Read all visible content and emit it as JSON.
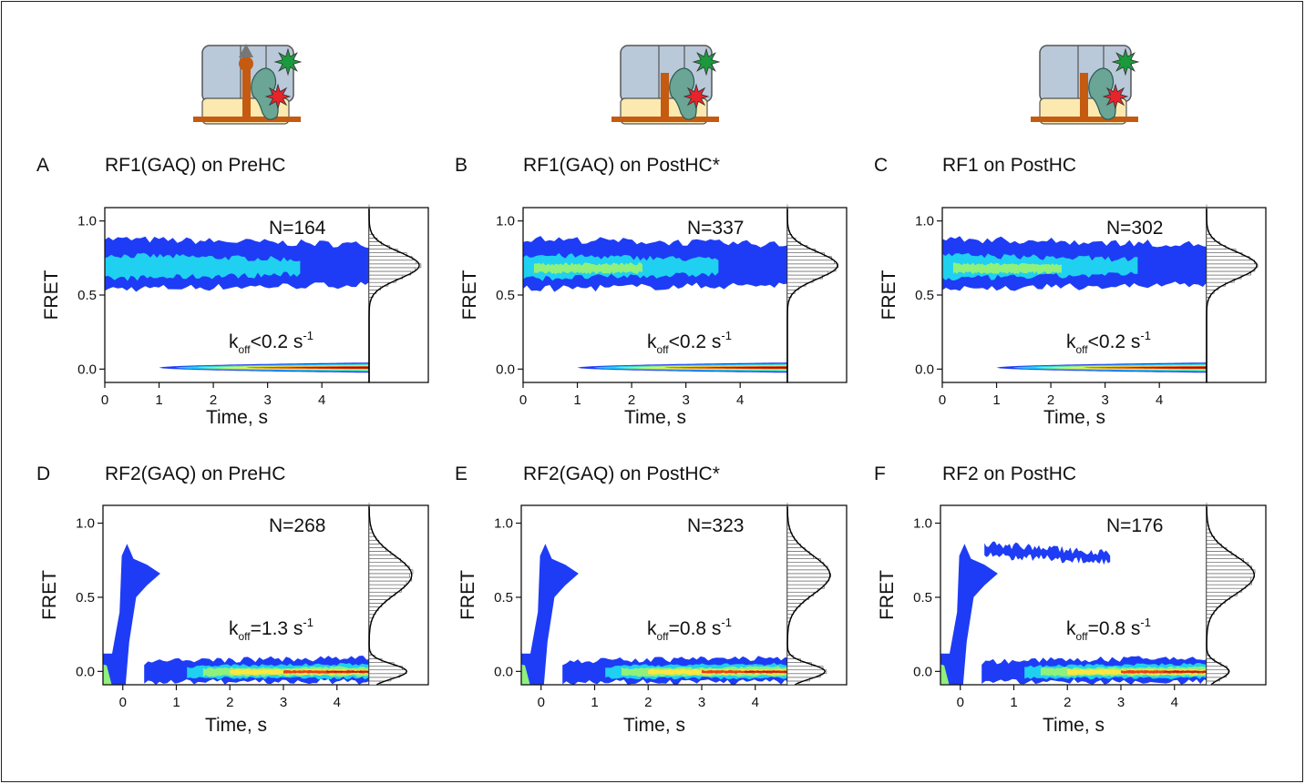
{
  "chart_data": [
    {
      "type": "contour",
      "label": "A",
      "title": "RF1(GAQ) on PreHC",
      "n_label": "N=164",
      "rate": {
        "symbol": "k",
        "subscript": "off",
        "text": "<0.2 s",
        "superscript": "-1"
      },
      "xlabel": "Time, s",
      "ylabel": "FRET",
      "xlim": [
        0,
        4.87
      ],
      "ylim": [
        -0.09,
        1.09
      ],
      "xticks": [
        0,
        1,
        2,
        3,
        4
      ],
      "yticks": [
        {
          "value": 0,
          "label": "0.0"
        },
        {
          "value": 0.5,
          "label": "0.5"
        },
        {
          "value": 1,
          "label": "1.0"
        }
      ]
    },
    {
      "type": "contour",
      "label": "B",
      "title": "RF1(GAQ) on PostHC*",
      "n_label": "N=337",
      "rate": {
        "symbol": "k",
        "subscript": "off",
        "text": "<0.2 s",
        "superscript": "-1"
      },
      "xlabel": "Time, s",
      "ylabel": "FRET",
      "xlim": [
        0,
        4.87
      ],
      "ylim": [
        -0.09,
        1.09
      ],
      "xticks": [
        0,
        1,
        2,
        3,
        4
      ],
      "yticks": [
        {
          "value": 0,
          "label": "0.0"
        },
        {
          "value": 0.5,
          "label": "0.5"
        },
        {
          "value": 1,
          "label": "1.0"
        }
      ]
    },
    {
      "type": "contour",
      "label": "C",
      "title": "RF1 on PostHC",
      "n_label": "N=302",
      "rate": {
        "symbol": "k",
        "subscript": "off",
        "text": "<0.2 s",
        "superscript": "-1"
      },
      "xlabel": "Time, s",
      "ylabel": "FRET",
      "xlim": [
        0,
        4.87
      ],
      "ylim": [
        -0.09,
        1.09
      ],
      "xticks": [
        0,
        1,
        2,
        3,
        4
      ],
      "yticks": [
        {
          "value": 0,
          "label": "0.0"
        },
        {
          "value": 0.5,
          "label": "0.5"
        },
        {
          "value": 1,
          "label": "1.0"
        }
      ]
    },
    {
      "type": "contour",
      "label": "D",
      "title": "RF2(GAQ) on PreHC",
      "n_label": "N=268",
      "rate": {
        "symbol": "k",
        "subscript": "off",
        "text": "=1.3 s",
        "superscript": "-1"
      },
      "xlabel": "Time, s",
      "ylabel": "FRET",
      "xlim": [
        -0.37,
        4.6
      ],
      "ylim": [
        -0.09,
        1.12
      ],
      "xticks": [
        0,
        1,
        2,
        3,
        4
      ],
      "yticks": [
        {
          "value": 0,
          "label": "0.0"
        },
        {
          "value": 0.5,
          "label": "0.5"
        },
        {
          "value": 1,
          "label": "1.0"
        }
      ]
    },
    {
      "type": "contour",
      "label": "E",
      "title": "RF2(GAQ) on PostHC*",
      "n_label": "N=323",
      "rate": {
        "symbol": "k",
        "subscript": "off",
        "text": "=0.8 s",
        "superscript": "-1"
      },
      "xlabel": "Time, s",
      "ylabel": "FRET",
      "xlim": [
        -0.37,
        4.6
      ],
      "ylim": [
        -0.09,
        1.12
      ],
      "xticks": [
        0,
        1,
        2,
        3,
        4
      ],
      "yticks": [
        {
          "value": 0,
          "label": "0.0"
        },
        {
          "value": 0.5,
          "label": "0.5"
        },
        {
          "value": 1,
          "label": "1.0"
        }
      ]
    },
    {
      "type": "contour",
      "label": "F",
      "title": "RF2 on PostHC",
      "n_label": "N=176",
      "rate": {
        "symbol": "k",
        "subscript": "off",
        "text": "=0.8 s",
        "superscript": "-1"
      },
      "xlabel": "Time, s",
      "ylabel": "FRET",
      "xlim": [
        -0.37,
        4.6
      ],
      "ylim": [
        -0.09,
        1.12
      ],
      "xticks": [
        0,
        1,
        2,
        3,
        4
      ],
      "yticks": [
        {
          "value": 0,
          "label": "0.0"
        },
        {
          "value": 0.5,
          "label": "0.5"
        },
        {
          "value": 1,
          "label": "1.0"
        }
      ]
    }
  ]
}
